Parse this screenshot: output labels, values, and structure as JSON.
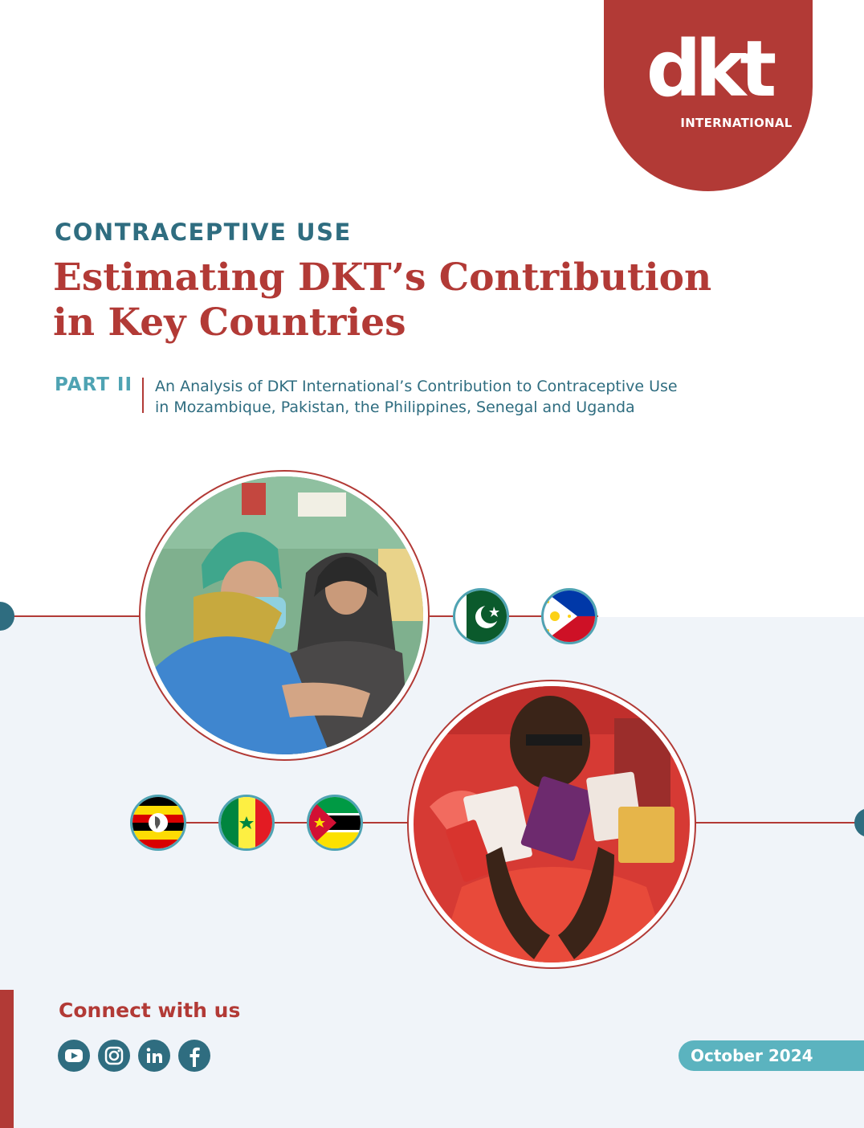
{
  "brand": {
    "logo_main": "dkt",
    "logo_sub": "INTERNATIONAL",
    "accent_color": "#b23a36",
    "teal_color": "#2f6d80",
    "light_teal_color": "#5bb3bf"
  },
  "header": {
    "eyebrow": "CONTRACEPTIVE USE",
    "title_line1": "Estimating DKT’s Contribution",
    "title_line2": "in Key Countries"
  },
  "part": {
    "label": "PART II",
    "description_line1": "An Analysis of DKT International’s Contribution to Contraceptive Use",
    "description_line2": "in Mozambique, Pakistan, the Philippines, Senegal and Uganda"
  },
  "flags": [
    "pakistan-flag-icon",
    "philippines-flag-icon",
    "uganda-flag-icon",
    "senegal-flag-icon",
    "mozambique-flag-icon"
  ],
  "footer": {
    "connect_label": "Connect with us",
    "social_icons": [
      "youtube-icon",
      "instagram-icon",
      "linkedin-icon",
      "facebook-icon"
    ],
    "date": "October 2024"
  }
}
